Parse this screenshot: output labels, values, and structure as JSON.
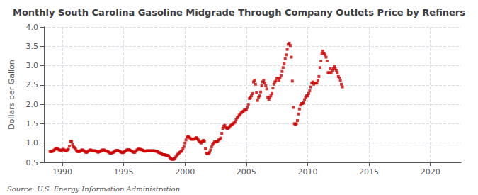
{
  "chart_data": {
    "type": "scatter",
    "title": "Monthly South Carolina Gasoline Midgrade Through Company Outlets Price by Refiners",
    "ylabel": "Dollars per Gallon",
    "annotations": [
      "Source: U.S. Energy Information Administration"
    ],
    "color": "#cc0000",
    "marker": "square",
    "grid": true,
    "xlim": [
      1988.5,
      2022.5
    ],
    "xticks": [
      1990,
      1995,
      2000,
      2005,
      2010,
      2015,
      2020
    ],
    "ylim": [
      0.5,
      4.0
    ],
    "yticks": [
      0.5,
      {
        "value": 1.0,
        "label": "1.0"
      },
      1.5,
      {
        "value": 2.0,
        "label": "2.0"
      },
      2.5,
      {
        "value": 3.0,
        "label": "3.0"
      },
      3.5,
      {
        "value": 4.0,
        "label": "4.0"
      }
    ],
    "x": [
      1989.0,
      1989.083,
      1989.167,
      1989.25,
      1989.333,
      1989.417,
      1989.5,
      1989.583,
      1989.667,
      1989.75,
      1989.833,
      1989.917,
      1990.0,
      1990.083,
      1990.167,
      1990.25,
      1990.333,
      1990.417,
      1990.5,
      1990.583,
      1990.667,
      1990.75,
      1990.833,
      1990.917,
      1991.0,
      1991.083,
      1991.167,
      1991.25,
      1991.333,
      1991.417,
      1991.5,
      1991.583,
      1991.667,
      1991.75,
      1991.833,
      1991.917,
      1992.0,
      1992.083,
      1992.167,
      1992.25,
      1992.333,
      1992.417,
      1992.5,
      1992.583,
      1992.667,
      1992.75,
      1992.833,
      1992.917,
      1993.0,
      1993.083,
      1993.167,
      1993.25,
      1993.333,
      1993.417,
      1993.5,
      1993.583,
      1993.667,
      1993.75,
      1993.833,
      1993.917,
      1994.0,
      1994.083,
      1994.167,
      1994.25,
      1994.333,
      1994.417,
      1994.5,
      1994.583,
      1994.667,
      1994.75,
      1994.833,
      1994.917,
      1995.0,
      1995.083,
      1995.167,
      1995.25,
      1995.333,
      1995.417,
      1995.5,
      1995.583,
      1995.667,
      1995.75,
      1995.833,
      1995.917,
      1996.0,
      1996.083,
      1996.167,
      1996.25,
      1996.333,
      1996.417,
      1996.5,
      1996.583,
      1996.667,
      1996.75,
      1996.833,
      1996.917,
      1997.0,
      1997.083,
      1997.167,
      1997.25,
      1997.333,
      1997.417,
      1997.5,
      1997.583,
      1997.667,
      1997.75,
      1997.833,
      1997.917,
      1998.0,
      1998.083,
      1998.167,
      1998.25,
      1998.333,
      1998.417,
      1998.5,
      1998.583,
      1998.667,
      1998.75,
      1998.833,
      1998.917,
      1999.0,
      1999.083,
      1999.167,
      1999.25,
      1999.333,
      1999.417,
      1999.5,
      1999.583,
      1999.667,
      1999.75,
      1999.833,
      1999.917,
      2000.0,
      2000.083,
      2000.167,
      2000.25,
      2000.333,
      2000.417,
      2000.5,
      2000.583,
      2000.667,
      2000.75,
      2000.833,
      2000.917,
      2001.0,
      2001.083,
      2001.167,
      2001.25,
      2001.333,
      2001.417,
      2001.5,
      2001.583,
      2001.667,
      2001.75,
      2001.833,
      2001.917,
      2002.0,
      2002.083,
      2002.167,
      2002.25,
      2002.333,
      2002.417,
      2002.5,
      2002.583,
      2002.667,
      2002.75,
      2002.833,
      2002.917,
      2003.0,
      2003.083,
      2003.167,
      2003.25,
      2003.333,
      2003.417,
      2003.5,
      2003.583,
      2003.667,
      2003.75,
      2003.833,
      2003.917,
      2004.0,
      2004.083,
      2004.167,
      2004.25,
      2004.333,
      2004.417,
      2004.5,
      2004.583,
      2004.667,
      2004.75,
      2004.833,
      2004.917,
      2005.0,
      2005.083,
      2005.167,
      2005.25,
      2005.333,
      2005.417,
      2005.5,
      2005.583,
      2005.667,
      2005.75,
      2005.833,
      2005.917,
      2006.0,
      2006.083,
      2006.167,
      2006.25,
      2006.333,
      2006.417,
      2006.5,
      2006.583,
      2006.667,
      2006.75,
      2006.833,
      2006.917,
      2007.0,
      2007.083,
      2007.167,
      2007.25,
      2007.333,
      2007.417,
      2007.5,
      2007.583,
      2007.667,
      2007.75,
      2007.833,
      2007.917,
      2008.0,
      2008.083,
      2008.167,
      2008.25,
      2008.333,
      2008.417,
      2008.5,
      2008.583,
      2008.667,
      2008.75,
      2008.833,
      2008.917,
      2009.0,
      2009.083,
      2009.167,
      2009.25,
      2009.333,
      2009.417,
      2009.5,
      2009.583,
      2009.667,
      2009.75,
      2009.833,
      2009.917,
      2010.0,
      2010.083,
      2010.167,
      2010.25,
      2010.333,
      2010.417,
      2010.5,
      2010.583,
      2010.667,
      2010.75,
      2010.833,
      2010.917,
      2011.0,
      2011.083,
      2011.167,
      2011.25,
      2011.333,
      2011.417,
      2011.5,
      2011.583,
      2011.667,
      2011.75,
      2011.833,
      2011.917,
      2012.0,
      2012.083,
      2012.167,
      2012.25,
      2012.333,
      2012.417,
      2012.5,
      2012.583,
      2012.667,
      2012.75,
      2012.833
    ],
    "values": [
      0.78,
      0.78,
      0.78,
      0.8,
      0.82,
      0.84,
      0.86,
      0.86,
      0.84,
      0.82,
      0.82,
      0.8,
      0.82,
      0.84,
      0.82,
      0.8,
      0.8,
      0.82,
      0.84,
      0.92,
      1.05,
      1.04,
      0.96,
      0.9,
      0.88,
      0.84,
      0.8,
      0.78,
      0.78,
      0.78,
      0.8,
      0.82,
      0.82,
      0.8,
      0.78,
      0.76,
      0.76,
      0.78,
      0.8,
      0.82,
      0.82,
      0.8,
      0.8,
      0.8,
      0.8,
      0.79,
      0.78,
      0.76,
      0.78,
      0.78,
      0.8,
      0.82,
      0.82,
      0.82,
      0.8,
      0.79,
      0.79,
      0.77,
      0.75,
      0.74,
      0.74,
      0.75,
      0.76,
      0.78,
      0.8,
      0.81,
      0.81,
      0.8,
      0.79,
      0.77,
      0.76,
      0.75,
      0.76,
      0.78,
      0.8,
      0.82,
      0.82,
      0.83,
      0.82,
      0.8,
      0.79,
      0.77,
      0.76,
      0.76,
      0.79,
      0.82,
      0.84,
      0.84,
      0.84,
      0.83,
      0.82,
      0.81,
      0.79,
      0.79,
      0.8,
      0.8,
      0.8,
      0.8,
      0.8,
      0.8,
      0.8,
      0.8,
      0.8,
      0.79,
      0.79,
      0.78,
      0.76,
      0.75,
      0.74,
      0.72,
      0.7,
      0.7,
      0.7,
      0.69,
      0.68,
      0.68,
      0.67,
      0.63,
      0.6,
      0.58,
      0.58,
      0.58,
      0.6,
      0.64,
      0.68,
      0.71,
      0.74,
      0.76,
      0.78,
      0.8,
      0.85,
      0.91,
      1.0,
      1.08,
      1.15,
      1.17,
      1.15,
      1.13,
      1.1,
      1.1,
      1.1,
      1.1,
      1.12,
      1.14,
      1.12,
      1.08,
      1.05,
      1.02,
      1.0,
      1.05,
      1.07,
      1.05,
      0.85,
      0.74,
      0.72,
      0.72,
      0.76,
      0.82,
      0.9,
      0.96,
      1.0,
      1.03,
      1.03,
      1.03,
      1.05,
      1.08,
      1.1,
      1.13,
      1.25,
      1.38,
      1.44,
      1.46,
      1.4,
      1.38,
      1.38,
      1.4,
      1.44,
      1.46,
      1.48,
      1.5,
      1.52,
      1.55,
      1.6,
      1.65,
      1.68,
      1.72,
      1.75,
      1.78,
      1.8,
      1.82,
      1.85,
      1.85,
      1.86,
      1.92,
      2.0,
      2.15,
      2.18,
      2.22,
      2.28,
      2.58,
      2.62,
      2.52,
      2.3,
      2.1,
      2.18,
      2.22,
      2.32,
      2.48,
      2.58,
      2.62,
      2.55,
      2.48,
      2.4,
      2.18,
      2.12,
      2.18,
      2.22,
      2.28,
      2.42,
      2.52,
      2.58,
      2.62,
      2.68,
      2.68,
      2.62,
      2.68,
      2.75,
      2.85,
      2.95,
      3.05,
      3.18,
      3.28,
      3.42,
      3.55,
      3.58,
      3.52,
      3.22,
      2.6,
      1.92,
      1.5,
      1.48,
      1.5,
      1.58,
      1.75,
      1.88,
      1.98,
      2.02,
      2.02,
      2.05,
      2.12,
      2.18,
      2.22,
      2.22,
      2.28,
      2.35,
      2.45,
      2.55,
      2.58,
      2.52,
      2.55,
      2.55,
      2.55,
      2.62,
      2.72,
      2.95,
      3.12,
      3.32,
      3.38,
      3.32,
      3.28,
      3.22,
      3.12,
      2.82,
      2.82,
      2.92,
      2.82,
      2.88,
      2.92,
      2.98,
      2.92,
      2.88,
      2.82,
      2.72,
      2.68,
      2.62,
      2.52,
      2.45
    ]
  }
}
